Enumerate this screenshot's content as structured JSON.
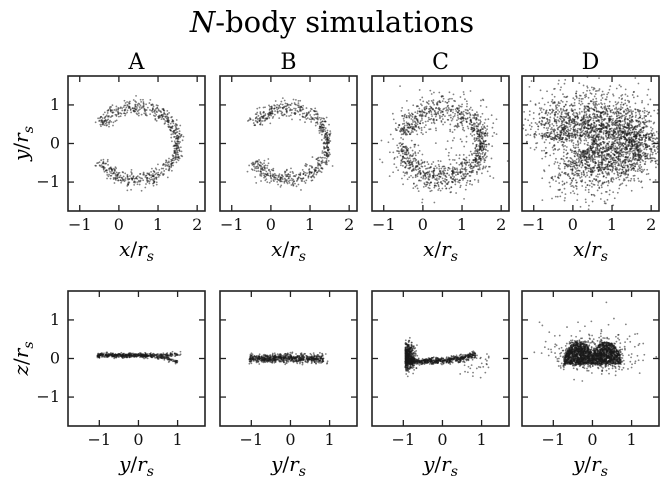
{
  "figure": {
    "title_italic": "N",
    "title_rest": "-body simulations"
  },
  "chart_data": [
    {
      "id": "A-xy",
      "type": "scatter",
      "title": "A",
      "row": 0,
      "col": 0,
      "xlabel": "x/r_s",
      "ylabel": "y/r_s",
      "xlim": [
        -1.3,
        2.2
      ],
      "ylim": [
        -1.75,
        1.75
      ],
      "xticks": [
        -1,
        0,
        1,
        2
      ],
      "yticks": [
        -1,
        0,
        1
      ],
      "shape": {
        "kind": "arc",
        "cx": 0.45,
        "cy": 0.0,
        "rx": 1.05,
        "ry": 0.95,
        "deg_from": -153,
        "deg_to": 153,
        "thick": 0.045,
        "n": 700,
        "scatter": 0.0,
        "tails": 0.05,
        "dots": 8
      }
    },
    {
      "id": "B-xy",
      "type": "scatter",
      "title": "B",
      "row": 0,
      "col": 1,
      "xlabel": "x/r_s",
      "ylabel": "",
      "xlim": [
        -1.3,
        2.2
      ],
      "ylim": [
        -1.75,
        1.75
      ],
      "xticks": [
        -1,
        0,
        1,
        2
      ],
      "yticks": [
        -1,
        0,
        1
      ],
      "shape": {
        "kind": "arc",
        "cx": 0.45,
        "cy": 0.0,
        "rx": 1.0,
        "ry": 0.93,
        "deg_from": -150,
        "deg_to": 150,
        "thick": 0.05,
        "n": 700,
        "scatter": 0.0,
        "tails": 0.05,
        "dots": 6
      }
    },
    {
      "id": "C-xy",
      "type": "scatter",
      "title": "C",
      "row": 0,
      "col": 2,
      "xlabel": "x/r_s",
      "ylabel": "",
      "xlim": [
        -1.3,
        2.2
      ],
      "ylim": [
        -1.75,
        1.75
      ],
      "xticks": [
        -1,
        0,
        1,
        2
      ],
      "yticks": [
        -1,
        0,
        1
      ],
      "shape": {
        "kind": "arc",
        "cx": 0.5,
        "cy": 0.0,
        "rx": 1.02,
        "ry": 0.9,
        "deg_from": -175,
        "deg_to": 165,
        "thick": 0.07,
        "n": 1200,
        "scatter": 0.22,
        "tails": 0.3,
        "dots": 90
      }
    },
    {
      "id": "D-xy",
      "type": "scatter",
      "title": "D",
      "row": 0,
      "col": 3,
      "xlabel": "x/r_s",
      "ylabel": "",
      "xlim": [
        -1.3,
        2.2
      ],
      "ylim": [
        -1.75,
        1.75
      ],
      "xticks": [
        -1,
        0,
        1,
        2
      ],
      "yticks": [
        -1,
        0,
        1
      ],
      "shape": {
        "kind": "arc",
        "cx": 0.55,
        "cy": 0.05,
        "rx": 1.05,
        "ry": 0.65,
        "deg_from": -130,
        "deg_to": 175,
        "thick": 0.2,
        "n": 2600,
        "scatter": 0.32,
        "tails": 0.45,
        "dots": 260
      }
    },
    {
      "id": "A-yz",
      "type": "scatter",
      "row": 1,
      "col": 0,
      "xlabel": "y/r_s",
      "ylabel": "z/r_s",
      "xlim": [
        -1.8,
        1.7
      ],
      "ylim": [
        -1.75,
        1.75
      ],
      "xticks": [
        -1,
        0,
        1
      ],
      "yticks": [
        -1,
        0,
        1
      ],
      "shape": {
        "kind": "band",
        "x0": -1.05,
        "x1": 1.0,
        "yc": 0.08,
        "h": 0.06,
        "curl": 0.18,
        "n": 600,
        "dots": 4
      }
    },
    {
      "id": "B-yz",
      "type": "scatter",
      "row": 1,
      "col": 1,
      "xlabel": "y/r_s",
      "ylabel": "",
      "xlim": [
        -1.8,
        1.7
      ],
      "ylim": [
        -1.75,
        1.75
      ],
      "xticks": [
        -1,
        0,
        1
      ],
      "yticks": [
        -1,
        0,
        1
      ],
      "shape": {
        "kind": "band",
        "x0": -1.05,
        "x1": 0.85,
        "yc": 0.0,
        "h": 0.12,
        "curl": 0.0,
        "n": 700,
        "dots": 4
      }
    },
    {
      "id": "C-yz",
      "type": "scatter",
      "row": 1,
      "col": 2,
      "xlabel": "y/r_s",
      "ylabel": "",
      "xlim": [
        -1.8,
        1.7
      ],
      "ylim": [
        -1.75,
        1.75
      ],
      "xticks": [
        -1,
        0,
        1
      ],
      "yticks": [
        -1,
        0,
        1
      ],
      "shape": {
        "kind": "hook",
        "x0": -0.95,
        "x1": 1.05,
        "yc": 0.0,
        "blob": 0.38,
        "n": 1100,
        "dots": 40
      }
    },
    {
      "id": "D-yz",
      "type": "scatter",
      "row": 1,
      "col": 3,
      "xlabel": "y/r_s",
      "ylabel": "",
      "xlim": [
        -1.8,
        1.7
      ],
      "ylim": [
        -1.75,
        1.75
      ],
      "xticks": [
        -1,
        0,
        1
      ],
      "yticks": [
        -1,
        0,
        1
      ],
      "shape": {
        "kind": "twin",
        "x0": -0.7,
        "x1": 0.9,
        "yc": 0.2,
        "n": 2200,
        "dots": 160
      }
    }
  ]
}
